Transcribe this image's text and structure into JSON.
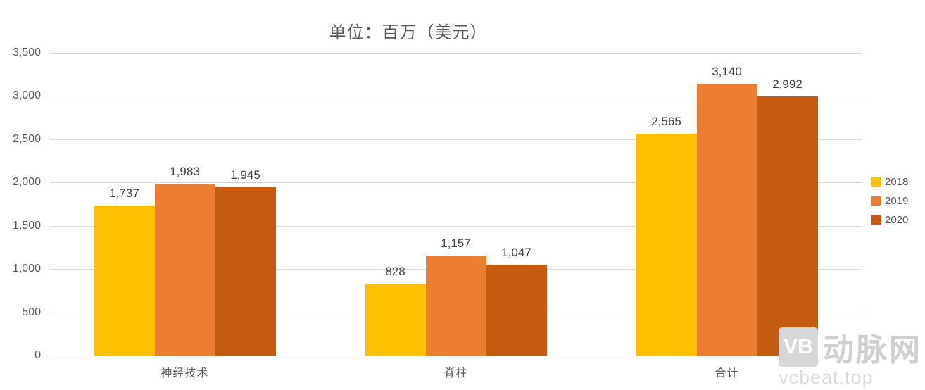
{
  "chart_data": {
    "type": "bar",
    "title": "单位：百万（美元）",
    "categories": [
      "神经技术",
      "脊柱",
      "合计"
    ],
    "series": [
      {
        "name": "2018",
        "color": "#FFC000",
        "values": [
          1737,
          828,
          2565
        ]
      },
      {
        "name": "2019",
        "color": "#ED7D31",
        "values": [
          1983,
          1157,
          3140
        ]
      },
      {
        "name": "2020",
        "color": "#C55A11",
        "values": [
          1945,
          1047,
          2992
        ]
      }
    ],
    "value_labels": [
      "1,737",
      "1,983",
      "1,945",
      "828",
      "1,157",
      "1,047",
      "2,565",
      "3,140",
      "2,992"
    ],
    "ytick_labels": [
      "0",
      "500",
      "1,000",
      "1,500",
      "2,000",
      "2,500",
      "3,000",
      "3,500"
    ],
    "ylim": [
      0,
      3500
    ],
    "ytick_step": 500,
    "xlabel": "",
    "ylabel": "",
    "grid": true,
    "legend_position": "right"
  },
  "watermark": {
    "logo": "VB",
    "name": "动脉网",
    "url": "vcbeat.top"
  }
}
